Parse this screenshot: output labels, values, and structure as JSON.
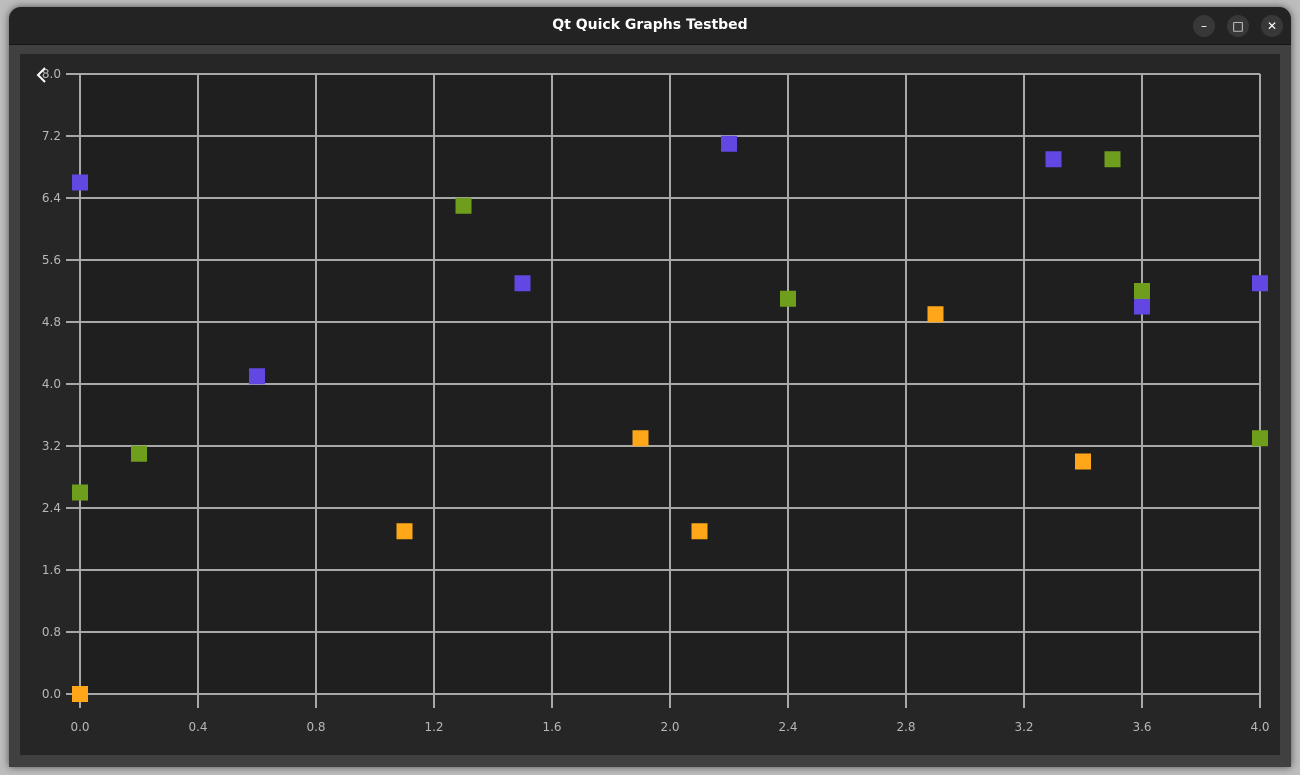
{
  "window": {
    "title": "Qt Quick Graphs Testbed",
    "back_icon": "chevron-left-icon"
  },
  "chart_data": {
    "type": "scatter",
    "xlim": [
      0.0,
      4.0
    ],
    "ylim": [
      0.0,
      8.0
    ],
    "x_ticks": [
      "0.0",
      "0.4",
      "0.8",
      "1.2",
      "1.6",
      "2.0",
      "2.4",
      "2.8",
      "3.2",
      "3.6",
      "4.0"
    ],
    "y_ticks": [
      "0.0",
      "0.8",
      "1.6",
      "2.4",
      "3.2",
      "4.0",
      "4.8",
      "5.6",
      "6.4",
      "7.2",
      "8.0"
    ],
    "grid": true,
    "marker": "square",
    "series": [
      {
        "color": "#6347e3",
        "points": [
          [
            0.0,
            6.6
          ],
          [
            0.6,
            4.1
          ],
          [
            1.5,
            5.3
          ],
          [
            2.2,
            7.1
          ],
          [
            3.3,
            6.9
          ],
          [
            3.6,
            5.0
          ],
          [
            4.0,
            5.3
          ]
        ]
      },
      {
        "color": "#6f9e1c",
        "points": [
          [
            0.0,
            2.6
          ],
          [
            0.2,
            3.1
          ],
          [
            1.3,
            6.3
          ],
          [
            2.4,
            5.1
          ],
          [
            3.5,
            6.9
          ],
          [
            3.6,
            5.2
          ],
          [
            4.0,
            3.3
          ]
        ]
      },
      {
        "color": "#ffa719",
        "points": [
          [
            0.0,
            0.0
          ],
          [
            1.1,
            2.1
          ],
          [
            1.9,
            3.3
          ],
          [
            2.1,
            2.1
          ],
          [
            2.9,
            4.9
          ],
          [
            3.4,
            3.0
          ]
        ]
      }
    ]
  }
}
